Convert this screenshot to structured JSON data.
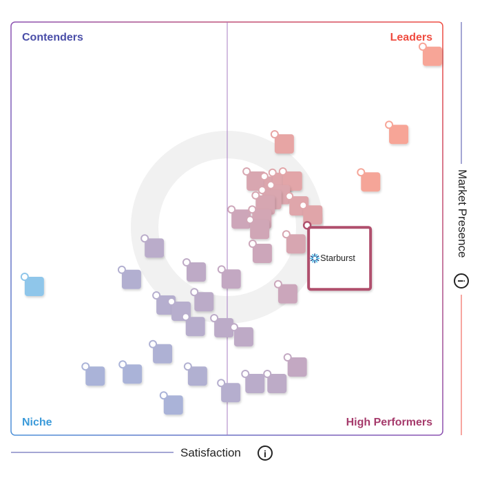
{
  "chart_data": {
    "type": "scatter",
    "title": "",
    "xlabel": "Satisfaction",
    "ylabel": "Market Presence",
    "xlim": [
      0,
      100
    ],
    "ylim": [
      0,
      100
    ],
    "grid": false,
    "quadrants": {
      "top_left": "Contenders",
      "top_right": "Leaders",
      "bottom_left": "Niche",
      "bottom_right": "High Performers"
    },
    "highlight": {
      "name": "Starburst",
      "x": 76.1,
      "y": 42.8
    },
    "points": [
      {
        "x": 97.6,
        "y": 91.7
      },
      {
        "x": 89.8,
        "y": 72.8
      },
      {
        "x": 83.3,
        "y": 61.3
      },
      {
        "x": 63.3,
        "y": 70.5
      },
      {
        "x": 56.8,
        "y": 61.5
      },
      {
        "x": 60.9,
        "y": 60.3
      },
      {
        "x": 62.8,
        "y": 61.2
      },
      {
        "x": 65.2,
        "y": 61.5
      },
      {
        "x": 62.4,
        "y": 58.2
      },
      {
        "x": 60.4,
        "y": 57.0
      },
      {
        "x": 58.9,
        "y": 55.7
      },
      {
        "x": 66.7,
        "y": 55.5
      },
      {
        "x": 69.9,
        "y": 53.3
      },
      {
        "x": 53.3,
        "y": 52.3
      },
      {
        "x": 58.1,
        "y": 52.3
      },
      {
        "x": 57.6,
        "y": 49.8
      },
      {
        "x": 66.0,
        "y": 46.3
      },
      {
        "x": 58.2,
        "y": 44.0
      },
      {
        "x": 33.2,
        "y": 45.3
      },
      {
        "x": 5.4,
        "y": 36.0
      },
      {
        "x": 27.9,
        "y": 37.7
      },
      {
        "x": 42.9,
        "y": 39.5
      },
      {
        "x": 51.0,
        "y": 37.8
      },
      {
        "x": 64.1,
        "y": 34.2
      },
      {
        "x": 35.9,
        "y": 31.5
      },
      {
        "x": 39.4,
        "y": 30.0
      },
      {
        "x": 44.7,
        "y": 32.3
      },
      {
        "x": 42.7,
        "y": 26.3
      },
      {
        "x": 49.3,
        "y": 26.0
      },
      {
        "x": 53.9,
        "y": 23.8
      },
      {
        "x": 35.1,
        "y": 19.7
      },
      {
        "x": 19.5,
        "y": 14.3
      },
      {
        "x": 28.1,
        "y": 14.8
      },
      {
        "x": 43.2,
        "y": 14.3
      },
      {
        "x": 66.3,
        "y": 16.5
      },
      {
        "x": 56.5,
        "y": 12.5
      },
      {
        "x": 61.6,
        "y": 12.5
      },
      {
        "x": 50.9,
        "y": 10.3
      },
      {
        "x": 37.6,
        "y": 7.3
      }
    ]
  },
  "colors": {
    "contenders": "#4a4ea8",
    "leaders": "#ef4b3f",
    "niche": "#3b9ad9",
    "high_performers": "#a53a6b",
    "highlight_border": "#b0506d"
  }
}
